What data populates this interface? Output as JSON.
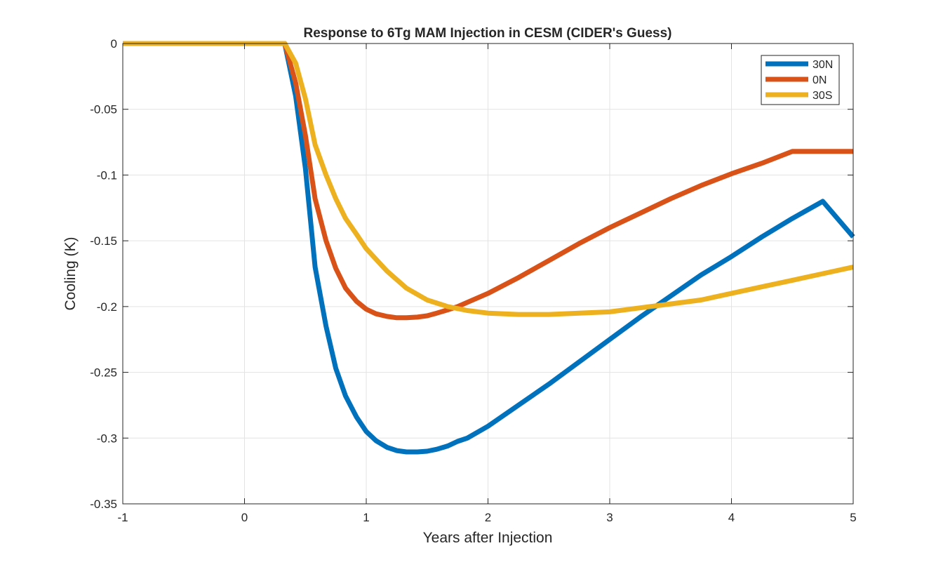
{
  "chart_data": {
    "type": "line",
    "title": "Response to 6Tg MAM Injection in CESM (CIDER's Guess)",
    "xlabel": "Years after Injection",
    "ylabel": "Cooling (K)",
    "xlim": [
      -1,
      5
    ],
    "ylim": [
      -0.35,
      0
    ],
    "xticks": [
      -1,
      0,
      1,
      2,
      3,
      4,
      5
    ],
    "xtick_labels": [
      "-1",
      "0",
      "1",
      "2",
      "3",
      "4",
      "5"
    ],
    "yticks": [
      0,
      -0.05,
      -0.1,
      -0.15,
      -0.2,
      -0.25,
      -0.3,
      -0.35
    ],
    "ytick_labels": [
      "0",
      "-0.05",
      "-0.1",
      "-0.15",
      "-0.2",
      "-0.25",
      "-0.3",
      "-0.35"
    ],
    "grid": true,
    "legend_position": "top-right",
    "series": [
      {
        "name": "30N",
        "color": "#0072BD",
        "x": [
          -1,
          0.33,
          0.42,
          0.5,
          0.58,
          0.67,
          0.75,
          0.83,
          0.92,
          1.0,
          1.08,
          1.17,
          1.25,
          1.33,
          1.42,
          1.5,
          1.58,
          1.67,
          1.75,
          1.83,
          2.0,
          2.25,
          2.5,
          2.75,
          3.0,
          3.25,
          3.5,
          3.75,
          4.0,
          4.25,
          4.5,
          4.75,
          5.0
        ],
        "y": [
          0,
          0,
          -0.04,
          -0.095,
          -0.17,
          -0.215,
          -0.247,
          -0.268,
          -0.284,
          -0.295,
          -0.302,
          -0.307,
          -0.3095,
          -0.3105,
          -0.3105,
          -0.31,
          -0.3085,
          -0.306,
          -0.3025,
          -0.3,
          -0.291,
          -0.275,
          -0.259,
          -0.242,
          -0.225,
          -0.208,
          -0.192,
          -0.176,
          -0.162,
          -0.147,
          -0.133,
          -0.12,
          -0.147
        ]
      },
      {
        "name": "0N",
        "color": "#D95319",
        "x": [
          -1,
          0.33,
          0.42,
          0.5,
          0.58,
          0.67,
          0.75,
          0.83,
          0.92,
          1.0,
          1.08,
          1.17,
          1.25,
          1.33,
          1.42,
          1.5,
          1.58,
          1.67,
          1.75,
          2.0,
          2.25,
          2.5,
          2.75,
          3.0,
          3.25,
          3.5,
          3.75,
          4.0,
          4.25,
          4.5,
          4.75,
          5.0
        ],
        "y": [
          0,
          0,
          -0.03,
          -0.07,
          -0.118,
          -0.15,
          -0.171,
          -0.186,
          -0.196,
          -0.202,
          -0.2055,
          -0.2075,
          -0.2085,
          -0.2085,
          -0.208,
          -0.207,
          -0.205,
          -0.2025,
          -0.2,
          -0.19,
          -0.178,
          -0.165,
          -0.152,
          -0.14,
          -0.129,
          -0.118,
          -0.108,
          -0.099,
          -0.091,
          -0.082,
          -0.082,
          -0.082
        ]
      },
      {
        "name": "30S",
        "color": "#EDB120",
        "x": [
          -1,
          0.33,
          0.42,
          0.5,
          0.58,
          0.67,
          0.75,
          0.83,
          0.92,
          1.0,
          1.17,
          1.33,
          1.5,
          1.67,
          1.83,
          2.0,
          2.25,
          2.5,
          2.75,
          3.0,
          3.25,
          3.5,
          3.75,
          4.0,
          4.25,
          4.5,
          4.75,
          5.0
        ],
        "y": [
          0,
          0,
          -0.015,
          -0.042,
          -0.077,
          -0.1,
          -0.118,
          -0.133,
          -0.145,
          -0.156,
          -0.173,
          -0.186,
          -0.195,
          -0.2,
          -0.203,
          -0.205,
          -0.206,
          -0.206,
          -0.205,
          -0.204,
          -0.201,
          -0.198,
          -0.195,
          -0.19,
          -0.185,
          -0.18,
          -0.175,
          -0.17
        ]
      }
    ]
  }
}
